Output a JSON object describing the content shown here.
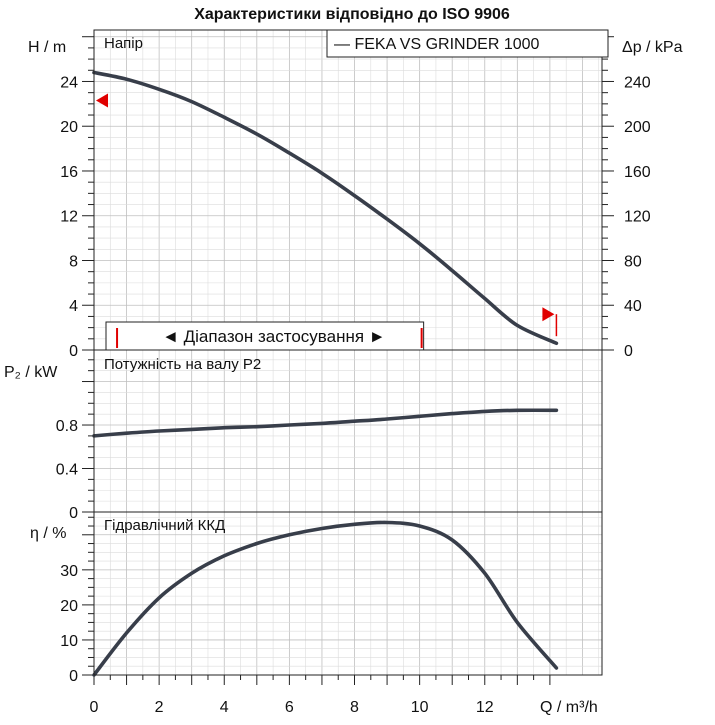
{
  "title": "Характеристики відповідно до ISO 9906",
  "colors": {
    "curve": "#383e4a",
    "marker": "#e00000",
    "grid_major": "#bfbfbf",
    "grid_minor": "#dcdcdc"
  },
  "legend": {
    "label": "— FEKA VS GRINDER 1000",
    "placement": "top-right"
  },
  "xaxis": {
    "label": "Q / m³/h",
    "ticks": [
      "0",
      "2",
      "4",
      "6",
      "8",
      "10",
      "12"
    ],
    "range": [
      0,
      15.6
    ]
  },
  "panels": {
    "head": {
      "title": "Напір",
      "ylabel": "H / m",
      "ylabel2": "Δp / kPa",
      "ticks": [
        "0",
        "4",
        "8",
        "12",
        "16",
        "20",
        "24"
      ],
      "ticks2": [
        "0",
        "40",
        "80",
        "120",
        "160",
        "200",
        "240"
      ],
      "range": [
        0,
        28.6
      ],
      "range_note": "◄ Діапазон застосування ►",
      "range_start_marker_y": 22.3,
      "range_end_marker_y": 3.2,
      "range_q": [
        0.8,
        10.0
      ],
      "series": [
        {
          "q": 0,
          "y": 24.8
        },
        {
          "q": 1,
          "y": 24.2
        },
        {
          "q": 2,
          "y": 23.3
        },
        {
          "q": 3,
          "y": 22.2
        },
        {
          "q": 4,
          "y": 20.8
        },
        {
          "q": 5,
          "y": 19.3
        },
        {
          "q": 6,
          "y": 17.6
        },
        {
          "q": 7,
          "y": 15.8
        },
        {
          "q": 8,
          "y": 13.8
        },
        {
          "q": 9,
          "y": 11.7
        },
        {
          "q": 10,
          "y": 9.5
        },
        {
          "q": 11,
          "y": 7.1
        },
        {
          "q": 12,
          "y": 4.6
        },
        {
          "q": 13,
          "y": 2.2
        },
        {
          "q": 14.2,
          "y": 0.6
        }
      ]
    },
    "power": {
      "title": "Потужність на валу P2",
      "ylabel": "P₂ / kW",
      "ticks": [
        "0",
        "0.4",
        "0.8"
      ],
      "range": [
        0,
        1.49
      ],
      "series": [
        {
          "q": 0,
          "y": 0.7
        },
        {
          "q": 1,
          "y": 0.725
        },
        {
          "q": 2,
          "y": 0.745
        },
        {
          "q": 3,
          "y": 0.76
        },
        {
          "q": 4,
          "y": 0.775
        },
        {
          "q": 5,
          "y": 0.785
        },
        {
          "q": 6,
          "y": 0.8
        },
        {
          "q": 7,
          "y": 0.815
        },
        {
          "q": 8,
          "y": 0.835
        },
        {
          "q": 9,
          "y": 0.855
        },
        {
          "q": 10,
          "y": 0.88
        },
        {
          "q": 11,
          "y": 0.905
        },
        {
          "q": 12,
          "y": 0.925
        },
        {
          "q": 13,
          "y": 0.935
        },
        {
          "q": 14.2,
          "y": 0.935
        }
      ]
    },
    "efficiency": {
      "title": "Гідравлічний ККД",
      "ylabel": "η / %",
      "ticks": [
        "0",
        "10",
        "20",
        "30"
      ],
      "range": [
        0,
        46.5
      ],
      "series": [
        {
          "q": 0,
          "y": 0
        },
        {
          "q": 1,
          "y": 12
        },
        {
          "q": 2,
          "y": 22
        },
        {
          "q": 3,
          "y": 29
        },
        {
          "q": 4,
          "y": 34
        },
        {
          "q": 5,
          "y": 37.5
        },
        {
          "q": 6,
          "y": 40
        },
        {
          "q": 7,
          "y": 41.8
        },
        {
          "q": 8,
          "y": 43
        },
        {
          "q": 9,
          "y": 43.5
        },
        {
          "q": 10,
          "y": 42.5
        },
        {
          "q": 11,
          "y": 38.5
        },
        {
          "q": 12,
          "y": 29
        },
        {
          "q": 13,
          "y": 15
        },
        {
          "q": 14.2,
          "y": 2
        }
      ]
    }
  },
  "chart_data": [
    {
      "type": "line",
      "title": "Напір",
      "xlabel": "Q / m³/h",
      "ylabel": "H / m",
      "ylabel2": "Δp / kPa",
      "xlim": [
        0,
        15.6
      ],
      "ylim": [
        0,
        28.6
      ],
      "grid": true,
      "series": [
        {
          "name": "FEKA VS GRINDER 1000",
          "x": [
            0,
            1,
            2,
            3,
            4,
            5,
            6,
            7,
            8,
            9,
            10,
            11,
            12,
            13,
            14.2
          ],
          "y": [
            24.8,
            24.2,
            23.3,
            22.2,
            20.8,
            19.3,
            17.6,
            15.8,
            13.8,
            11.7,
            9.5,
            7.1,
            4.6,
            2.2,
            0.6
          ]
        }
      ]
    },
    {
      "type": "line",
      "title": "Потужність на валу P2",
      "xlabel": "Q / m³/h",
      "ylabel": "P₂ / kW",
      "xlim": [
        0,
        15.6
      ],
      "ylim": [
        0,
        1.49
      ],
      "grid": true,
      "series": [
        {
          "name": "FEKA VS GRINDER 1000",
          "x": [
            0,
            1,
            2,
            3,
            4,
            5,
            6,
            7,
            8,
            9,
            10,
            11,
            12,
            13,
            14.2
          ],
          "y": [
            0.7,
            0.725,
            0.745,
            0.76,
            0.775,
            0.785,
            0.8,
            0.815,
            0.835,
            0.855,
            0.88,
            0.905,
            0.925,
            0.935,
            0.935
          ]
        }
      ]
    },
    {
      "type": "line",
      "title": "Гідравлічний ККД",
      "xlabel": "Q / m³/h",
      "ylabel": "η / %",
      "xlim": [
        0,
        15.6
      ],
      "ylim": [
        0,
        46.5
      ],
      "grid": true,
      "series": [
        {
          "name": "FEKA VS GRINDER 1000",
          "x": [
            0,
            1,
            2,
            3,
            4,
            5,
            6,
            7,
            8,
            9,
            10,
            11,
            12,
            13,
            14.2
          ],
          "y": [
            0,
            12,
            22,
            29,
            34,
            37.5,
            40,
            41.8,
            43,
            43.5,
            42.5,
            38.5,
            29,
            15,
            2
          ]
        }
      ]
    }
  ]
}
